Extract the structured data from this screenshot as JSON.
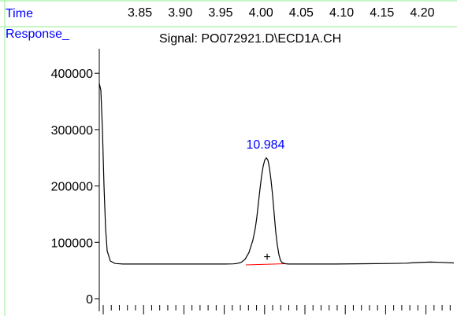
{
  "colors": {
    "label_blue": "#0000ff",
    "frame_green": "#90ee90",
    "trace": "#000000",
    "baseline_red": "#ff0000",
    "background": "#ffffff"
  },
  "header": {
    "time_label": "Time",
    "response_label": "Response_",
    "signal_text": "Signal: PO072921.D\\ECD1A.CH"
  },
  "chart_data": {
    "type": "line",
    "title": "Signal: PO072921.D\\ECD1A.CH",
    "xlabel": "Time",
    "ylabel": "Response_",
    "x_ticks": [
      "3.85",
      "3.90",
      "3.95",
      "4.00",
      "4.05",
      "4.10",
      "4.15",
      "4.20"
    ],
    "y_ticks": [
      "0",
      "100000",
      "200000",
      "300000",
      "400000"
    ],
    "ylim": [
      0,
      420000
    ],
    "grid": false,
    "series": [
      {
        "x": [
          0,
          2,
          4,
          6,
          8,
          10,
          14,
          20,
          30,
          60,
          100,
          140,
          160,
          170,
          175,
          180,
          185,
          190,
          195,
          198,
          200,
          202,
          204,
          206,
          208,
          210,
          212,
          214,
          216,
          218,
          220,
          222,
          224,
          226,
          228,
          230,
          232,
          236,
          240,
          250,
          260,
          280,
          300,
          340,
          370,
          390,
          400,
          420,
          435,
          450
        ],
        "values": [
          382000,
          370000,
          300000,
          200000,
          125000,
          85000,
          67000,
          62500,
          61500,
          61500,
          61500,
          61500,
          61500,
          61800,
          62500,
          64500,
          70000,
          82000,
          104000,
          125000,
          145000,
          170000,
          195000,
          218000,
          235000,
          246000,
          250000,
          246000,
          232000,
          210000,
          183000,
          150000,
          118000,
          95000,
          78000,
          68000,
          64000,
          62000,
          61500,
          61500,
          61500,
          61500,
          61500,
          62000,
          62500,
          63000,
          64000,
          65000,
          64500,
          63500
        ]
      }
    ],
    "peaks": [
      {
        "label": "10.984",
        "apex_x": 212,
        "apex_y": 250000
      }
    ],
    "baseline": {
      "x": [
        186,
        236
      ],
      "values": [
        60000,
        62000
      ]
    },
    "marker": {
      "symbol": "+",
      "x": 212,
      "y": 75000
    }
  }
}
